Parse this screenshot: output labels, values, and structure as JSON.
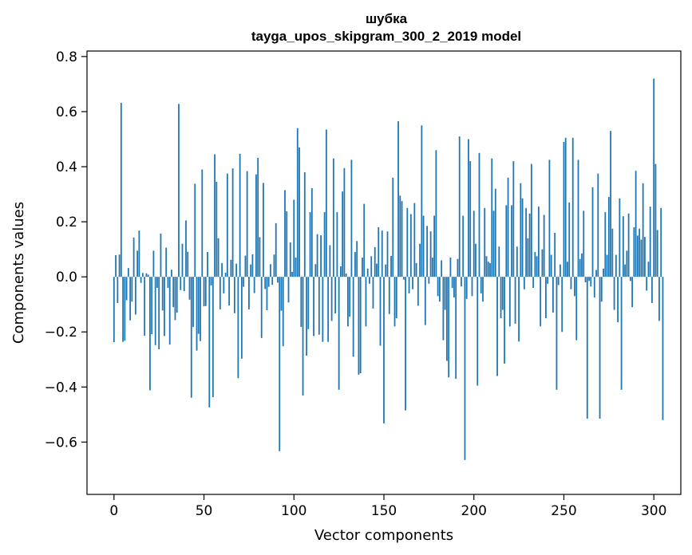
{
  "chart_data": {
    "type": "bar",
    "title_lines": [
      "шубка",
      "tayga_upos_skipgram_300_2_2019 model"
    ],
    "xlabel": "Vector components",
    "ylabel": "Components values",
    "xlim": [
      -15,
      315
    ],
    "ylim": [
      -0.79,
      0.82
    ],
    "x_ticks": [
      0,
      50,
      100,
      150,
      200,
      250,
      300
    ],
    "x_tick_labels": [
      "0",
      "50",
      "100",
      "150",
      "200",
      "250",
      "300"
    ],
    "y_ticks": [
      -0.6,
      -0.4,
      -0.2,
      0.0,
      0.2,
      0.4,
      0.6,
      0.8
    ],
    "y_tick_labels": [
      "−0.6",
      "−0.4",
      "−0.2",
      "0.0",
      "0.2",
      "0.4",
      "0.6",
      "0.8"
    ],
    "grid": false,
    "bar_color": "#1f77b4",
    "values": [
      -0.237,
      0.079,
      -0.095,
      0.081,
      0.632,
      -0.236,
      -0.232,
      -0.085,
      0.032,
      -0.158,
      -0.09,
      0.143,
      -0.137,
      0.095,
      0.168,
      -0.022,
      0.014,
      -0.214,
      0.013,
      0.008,
      -0.412,
      -0.208,
      0.095,
      -0.248,
      -0.04,
      -0.263,
      0.157,
      -0.122,
      -0.215,
      0.106,
      -0.04,
      -0.246,
      0.026,
      -0.11,
      -0.157,
      -0.13,
      0.628,
      -0.048,
      0.12,
      -0.052,
      0.205,
      0.091,
      -0.083,
      -0.439,
      -0.182,
      0.338,
      -0.268,
      -0.207,
      -0.233,
      0.39,
      -0.107,
      -0.106,
      0.09,
      -0.474,
      -0.031,
      -0.437,
      0.445,
      0.345,
      0.14,
      -0.118,
      0.05,
      -0.06,
      0.015,
      0.375,
      -0.104,
      0.062,
      0.394,
      -0.132,
      0.048,
      -0.368,
      0.447,
      -0.297,
      -0.036,
      0.077,
      0.384,
      -0.118,
      0.045,
      0.082,
      -0.059,
      0.372,
      0.432,
      0.144,
      -0.222,
      0.341,
      -0.044,
      -0.121,
      -0.036,
      0.046,
      -0.029,
      0.081,
      0.195,
      -0.021,
      -0.633,
      -0.123,
      -0.252,
      0.315,
      0.238,
      -0.093,
      0.125,
      0.018,
      0.28,
      0.07,
      0.54,
      0.47,
      -0.182,
      -0.431,
      0.38,
      -0.286,
      -0.19,
      0.235,
      0.322,
      -0.215,
      0.046,
      0.155,
      -0.21,
      0.151,
      -0.236,
      0.235,
      0.535,
      -0.236,
      0.115,
      -0.16,
      0.43,
      -0.133,
      0.235,
      -0.41,
      0.038,
      0.31,
      0.395,
      0.012,
      -0.18,
      -0.145,
      0.425,
      -0.29,
      0.09,
      0.13,
      -0.355,
      -0.35,
      0.07,
      0.265,
      -0.18,
      0.03,
      -0.025,
      0.075,
      -0.115,
      0.108,
      0.048,
      0.18,
      -0.25,
      0.168,
      -0.532,
      0.045,
      0.165,
      -0.135,
      0.076,
      0.36,
      -0.18,
      -0.15,
      0.565,
      0.295,
      0.275,
      -0.01,
      -0.485,
      0.25,
      -0.06,
      0.228,
      -0.045,
      0.268,
      0.05,
      -0.105,
      0.12,
      0.55,
      0.222,
      -0.175,
      0.185,
      -0.025,
      0.165,
      0.07,
      0.222,
      0.46,
      -0.07,
      -0.09,
      0.06,
      -0.23,
      -0.12,
      -0.305,
      -0.365,
      0.07,
      -0.04,
      -0.075,
      -0.37,
      0.065,
      0.51,
      -0.035,
      0.222,
      -0.665,
      -0.08,
      0.5,
      0.42,
      -0.07,
      0.24,
      0.12,
      -0.395,
      0.45,
      -0.06,
      -0.09,
      0.25,
      0.075,
      0.055,
      0.05,
      0.43,
      0.24,
      0.32,
      -0.36,
      0.11,
      -0.15,
      -0.12,
      -0.315,
      0.26,
      0.36,
      -0.18,
      0.26,
      0.42,
      -0.17,
      0.11,
      -0.235,
      0.34,
      0.285,
      -0.045,
      0.25,
      0.14,
      0.23,
      0.41,
      -0.04,
      0.09,
      0.075,
      0.255,
      -0.18,
      0.1,
      0.225,
      -0.15,
      -0.025,
      0.425,
      0.08,
      -0.13,
      0.16,
      -0.41,
      -0.03,
      0.045,
      -0.2,
      0.49,
      0.505,
      0.055,
      0.27,
      -0.045,
      0.505,
      -0.07,
      -0.23,
      0.425,
      0.065,
      0.085,
      0.24,
      -0.02,
      -0.515,
      -0.015,
      -0.035,
      0.325,
      -0.075,
      0.025,
      0.375,
      -0.515,
      -0.09,
      0.03,
      0.235,
      0.08,
      0.29,
      0.53,
      0.175,
      -0.12,
      0.08,
      -0.165,
      0.285,
      -0.41,
      0.22,
      0.045,
      0.095,
      0.23,
      -0.015,
      -0.11,
      0.18,
      0.385,
      0.15,
      0.175,
      0.135,
      0.34,
      0.145,
      -0.05,
      0.055,
      0.255,
      -0.095,
      0.72,
      0.41,
      0.17,
      -0.16,
      0.25,
      -0.52
    ]
  }
}
